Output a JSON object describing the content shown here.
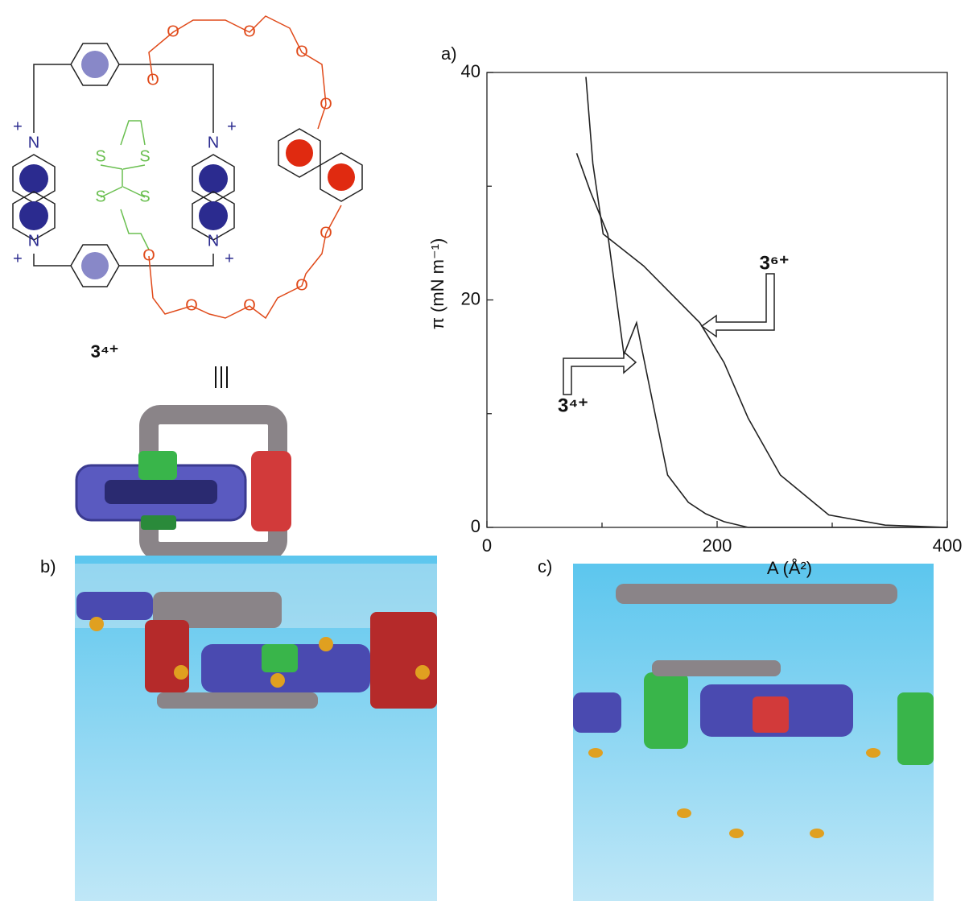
{
  "panel_labels": [
    "a)",
    "b)",
    "c)"
  ],
  "structure": {
    "compound": "3⁴⁺",
    "oxygen": "O",
    "nitrogen": "N",
    "sulfur": "S",
    "charge": "+"
  },
  "chart_data": {
    "type": "line",
    "x_label": "A (Å²)",
    "y_label": "π (mN m⁻¹)",
    "xlim": [
      0,
      400
    ],
    "ylim": [
      0,
      40
    ],
    "xticks": [
      0,
      200,
      400
    ],
    "yticks": [
      0,
      20,
      40
    ],
    "xminorticks": [
      100,
      300
    ],
    "yminorticks": [
      10,
      30
    ],
    "series": [
      {
        "name": "3⁴⁺",
        "color": "#222222",
        "x": [
          78,
          90,
          105,
          119,
          130,
          140,
          157,
          175,
          190,
          206,
          227,
          400
        ],
        "values": [
          32.9,
          29.5,
          25.8,
          15.2,
          18.0,
          13.0,
          4.6,
          2.2,
          1.2,
          0.5,
          0,
          0
        ]
      },
      {
        "name": "3⁶⁺",
        "color": "#222222",
        "x": [
          86,
          92,
          101,
          136,
          185,
          206,
          227,
          255,
          297,
          346,
          400
        ],
        "values": [
          39.6,
          32.0,
          25.8,
          23.0,
          18.0,
          14.5,
          9.6,
          4.6,
          1.1,
          0.2,
          0
        ]
      }
    ]
  }
}
